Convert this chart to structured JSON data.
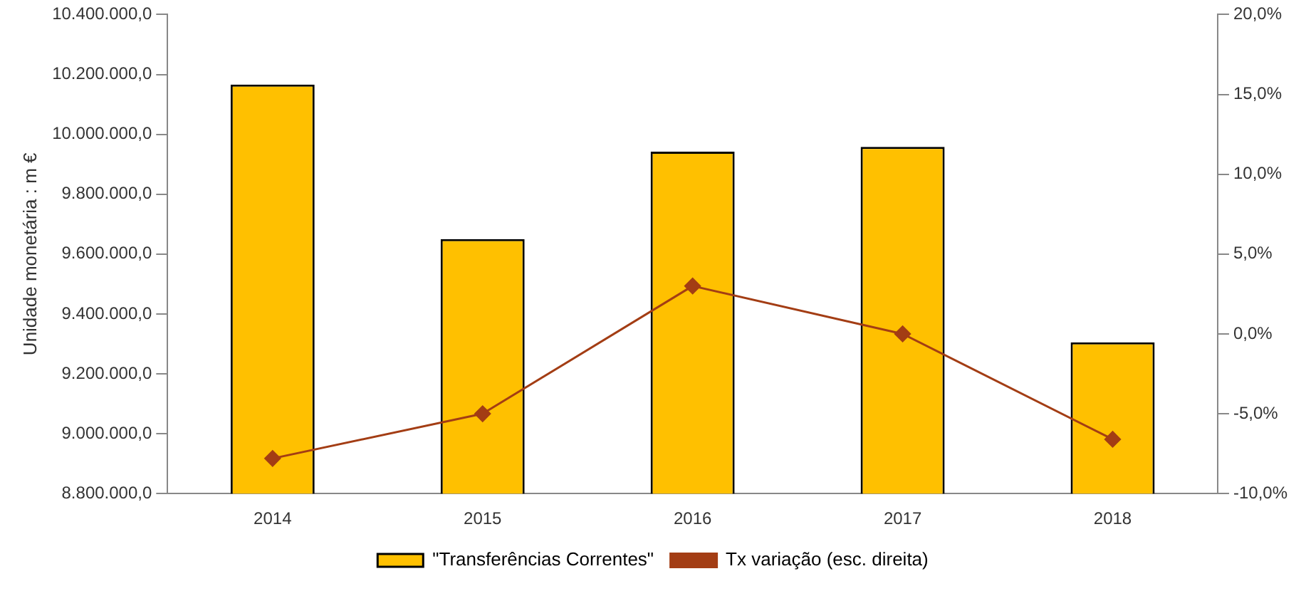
{
  "chart_data": {
    "type": "bar",
    "ylabel": "Unidade monetária : m €",
    "categories": [
      "2014",
      "2015",
      "2016",
      "2017",
      "2018"
    ],
    "series": [
      {
        "name": "\"Transferências Correntes\"",
        "color": "#ffc000",
        "values": [
          10166000,
          9650000,
          9942000,
          9958000,
          9305000
        ]
      },
      {
        "name": "Tx variação (esc. direita)",
        "type": "line",
        "axis": "y2",
        "color": "#a33d14",
        "marker": "diamond",
        "values": [
          -7.8,
          -5.0,
          3.0,
          0.0,
          -6.6
        ]
      }
    ],
    "ylim": [
      8800000,
      10400000
    ],
    "yticks": [
      {
        "value": 8800000,
        "label": "8.800.000,0"
      },
      {
        "value": 9000000,
        "label": "9.000.000,0"
      },
      {
        "value": 9200000,
        "label": "9.200.000,0"
      },
      {
        "value": 9400000,
        "label": "9.400.000,0"
      },
      {
        "value": 9600000,
        "label": "9.600.000,0"
      },
      {
        "value": 9800000,
        "label": "9.800.000,0"
      },
      {
        "value": 10000000,
        "label": "10.000.000,0"
      },
      {
        "value": 10200000,
        "label": "10.200.000,0"
      },
      {
        "value": 10400000,
        "label": "10.400.000,0"
      }
    ],
    "y2lim": [
      -10,
      20
    ],
    "y2ticks": [
      {
        "value": -10,
        "label": "-10,0%"
      },
      {
        "value": -5,
        "label": "-5,0%"
      },
      {
        "value": 0,
        "label": "0,0%"
      },
      {
        "value": 5,
        "label": "5,0%"
      },
      {
        "value": 10,
        "label": "10,0%"
      },
      {
        "value": 15,
        "label": "15,0%"
      },
      {
        "value": 20,
        "label": "20,0%"
      }
    ],
    "grid": false,
    "legend": "bottom"
  }
}
